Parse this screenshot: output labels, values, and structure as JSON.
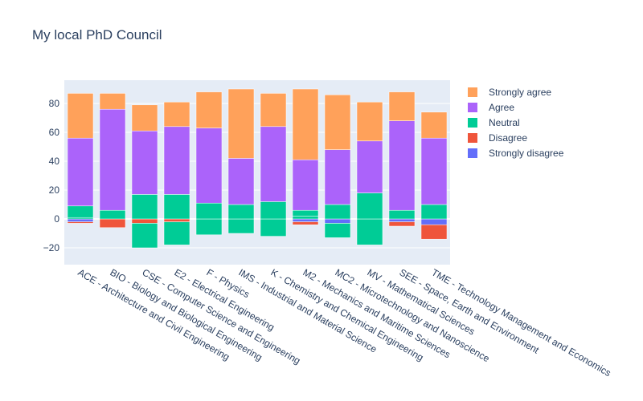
{
  "chart_data": {
    "type": "bar",
    "barmode": "relative",
    "title": "My local PhD Council",
    "xlabel": "",
    "ylabel": "",
    "ylim": [
      -32,
      95
    ],
    "yticks": [
      -20,
      0,
      20,
      40,
      60,
      80
    ],
    "grid": true,
    "legend_position": "right",
    "categories": [
      "ACE - Architecture and Civil Engineering",
      "BIO - Biology and Biological Engineering",
      "CSE - Computer Science and Engineering",
      "E2 - Electrical Engineering",
      "F - Physics",
      "IMS - Industrial and Material Science",
      "K - Chemistry and Chemical Engineering",
      "M2 - Mechanics and Maritime Sciences",
      "MC2 - Microtechnology and Nanoscience",
      "MV - Mathematical Sciences",
      "SEE - Space, Earth and Environment",
      "TME - Technology Management and Economics"
    ],
    "series": [
      {
        "name": "Strongly disagree",
        "color": "#636efa",
        "values": [
          -2,
          0,
          0,
          0,
          0,
          0,
          0,
          -2,
          -3,
          0,
          -2,
          -4
        ]
      },
      {
        "name": "Disagree",
        "color": "#ef553b",
        "values": [
          -1,
          -6,
          -3,
          -2,
          0,
          0,
          0,
          -2,
          0,
          0,
          -3,
          -10
        ]
      },
      {
        "name": "Neutral",
        "color": "#00cc96",
        "values": [
          1,
          6,
          -17,
          -16,
          -11,
          -10,
          -12,
          2,
          -10,
          -18,
          0,
          0
        ]
      },
      {
        "name": "Neutral",
        "color": "#00cc96",
        "positive_part": true,
        "values": [
          8,
          0,
          17,
          17,
          11,
          10,
          12,
          4,
          10,
          18,
          6,
          10
        ]
      },
      {
        "name": "Agree",
        "color": "#ab63fa",
        "values": [
          47,
          70,
          44,
          47,
          52,
          32,
          52,
          35,
          38,
          36,
          62,
          46
        ]
      },
      {
        "name": "Strongly agree",
        "color": "#ffa15a",
        "values": [
          31,
          11,
          18,
          17,
          25,
          48,
          23,
          49,
          38,
          27,
          20,
          18
        ]
      }
    ],
    "legend": [
      {
        "name": "Strongly agree",
        "color": "#ffa15a"
      },
      {
        "name": "Agree",
        "color": "#ab63fa"
      },
      {
        "name": "Neutral",
        "color": "#00cc96"
      },
      {
        "name": "Disagree",
        "color": "#ef553b"
      },
      {
        "name": "Strongly disagree",
        "color": "#636efa"
      }
    ]
  }
}
